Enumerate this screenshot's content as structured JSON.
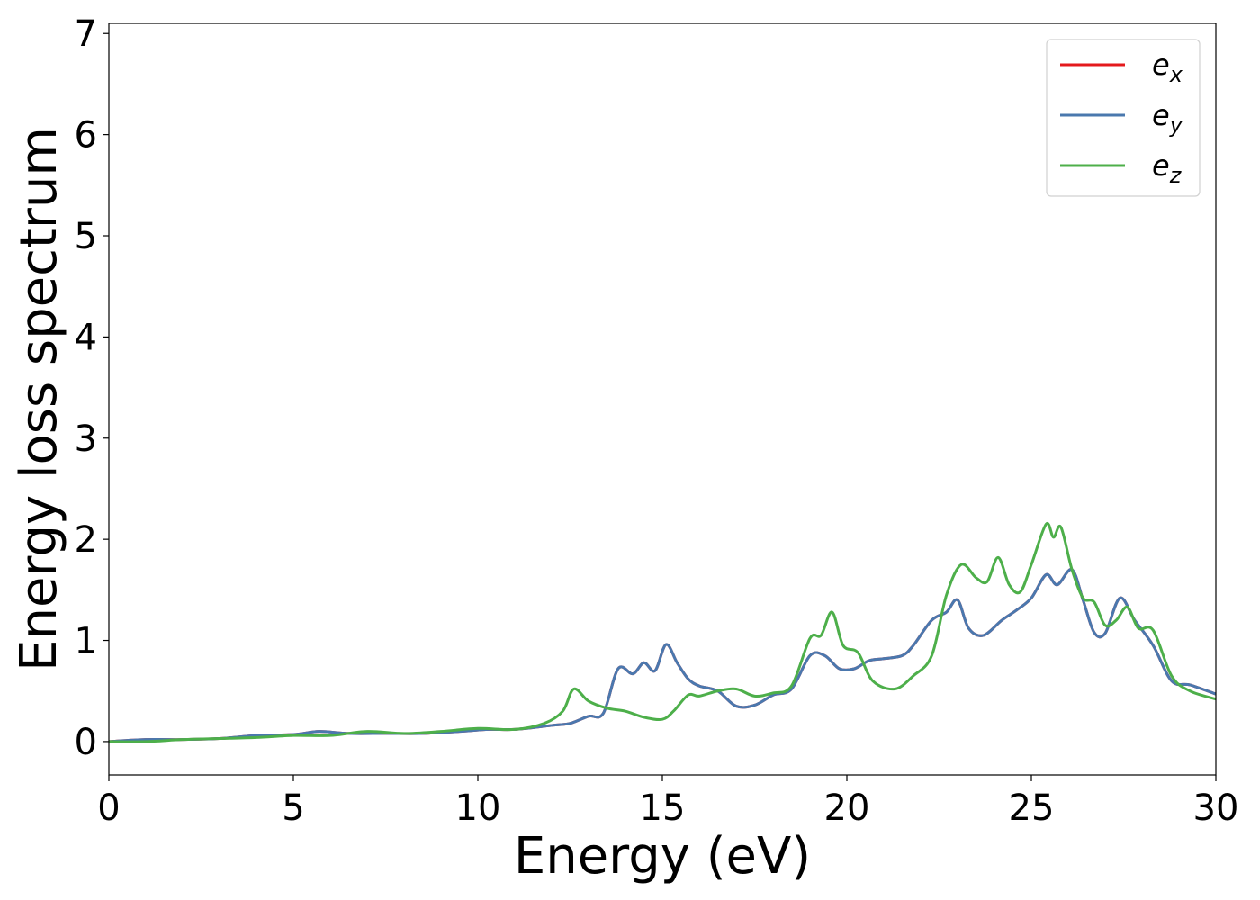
{
  "chart_data": {
    "type": "line",
    "title": "",
    "xlabel": "Energy (eV)",
    "ylabel": "Energy loss spectrum",
    "xlim": [
      0,
      30
    ],
    "ylim": [
      -0.33,
      7.1
    ],
    "xticks": [
      0,
      5,
      10,
      15,
      20,
      25,
      30
    ],
    "yticks": [
      0,
      1,
      2,
      3,
      4,
      5,
      6,
      7
    ],
    "grid": false,
    "legend_position": "top-right",
    "series": [
      {
        "name": "e",
        "subscript": "x",
        "color": "#e41a1c",
        "x": [
          0,
          1,
          2,
          3,
          4,
          5,
          5.7,
          6.5,
          7.5,
          8.5,
          9.5,
          10.3,
          11,
          12,
          12.5,
          13,
          13.4,
          13.8,
          14.2,
          14.5,
          14.8,
          15.1,
          15.4,
          15.7,
          16,
          16.5,
          17,
          17.5,
          18,
          18.5,
          19,
          19.4,
          19.8,
          20.2,
          20.6,
          21,
          21.5,
          21.8,
          22.3,
          22.7,
          23,
          23.3,
          23.7,
          24.2,
          24.6,
          25,
          25.4,
          25.7,
          26.1,
          26.4,
          26.7,
          27,
          27.4,
          27.8,
          28.3,
          28.8,
          29.3,
          30
        ],
        "values": [
          0,
          0.02,
          0.02,
          0.03,
          0.06,
          0.07,
          0.1,
          0.08,
          0.08,
          0.08,
          0.1,
          0.12,
          0.12,
          0.16,
          0.18,
          0.25,
          0.28,
          0.72,
          0.67,
          0.78,
          0.7,
          0.96,
          0.78,
          0.62,
          0.55,
          0.5,
          0.35,
          0.36,
          0.46,
          0.52,
          0.85,
          0.85,
          0.72,
          0.72,
          0.8,
          0.82,
          0.85,
          0.95,
          1.2,
          1.28,
          1.4,
          1.12,
          1.05,
          1.2,
          1.3,
          1.42,
          1.65,
          1.55,
          1.7,
          1.4,
          1.08,
          1.07,
          1.42,
          1.2,
          0.95,
          0.6,
          0.56,
          0.47
        ]
      },
      {
        "name": "e",
        "subscript": "y",
        "color": "#4a78ae",
        "x": [
          0,
          1,
          2,
          3,
          4,
          5,
          5.7,
          6.5,
          7.5,
          8.5,
          9.5,
          10.3,
          11,
          12,
          12.5,
          13,
          13.4,
          13.8,
          14.2,
          14.5,
          14.8,
          15.1,
          15.4,
          15.7,
          16,
          16.5,
          17,
          17.5,
          18,
          18.5,
          19,
          19.4,
          19.8,
          20.2,
          20.6,
          21,
          21.5,
          21.8,
          22.3,
          22.7,
          23,
          23.3,
          23.7,
          24.2,
          24.6,
          25,
          25.4,
          25.7,
          26.1,
          26.4,
          26.7,
          27,
          27.4,
          27.8,
          28.3,
          28.8,
          29.3,
          30
        ],
        "values": [
          0,
          0.02,
          0.02,
          0.03,
          0.06,
          0.07,
          0.1,
          0.08,
          0.08,
          0.08,
          0.1,
          0.12,
          0.12,
          0.16,
          0.18,
          0.25,
          0.28,
          0.72,
          0.67,
          0.78,
          0.7,
          0.96,
          0.78,
          0.62,
          0.55,
          0.5,
          0.35,
          0.36,
          0.46,
          0.52,
          0.85,
          0.85,
          0.72,
          0.72,
          0.8,
          0.82,
          0.85,
          0.95,
          1.2,
          1.28,
          1.4,
          1.12,
          1.05,
          1.2,
          1.3,
          1.42,
          1.65,
          1.55,
          1.7,
          1.4,
          1.08,
          1.07,
          1.42,
          1.2,
          0.95,
          0.6,
          0.56,
          0.47
        ]
      },
      {
        "name": "e",
        "subscript": "z",
        "color": "#4daf4a",
        "x": [
          0,
          1,
          2,
          3,
          4,
          5,
          6,
          7,
          8,
          9,
          10,
          11,
          11.8,
          12.3,
          12.6,
          13,
          13.5,
          14,
          14.5,
          15,
          15.3,
          15.7,
          16,
          16.5,
          17,
          17.5,
          18,
          18.5,
          19,
          19.3,
          19.6,
          19.9,
          20.3,
          20.7,
          21.3,
          21.8,
          22.3,
          22.7,
          23.1,
          23.5,
          23.8,
          24.1,
          24.4,
          24.7,
          25,
          25.4,
          25.6,
          25.8,
          26.1,
          26.4,
          26.7,
          27,
          27.3,
          27.6,
          27.9,
          28.3,
          28.8,
          29.3,
          30
        ],
        "values": [
          0,
          0,
          0.02,
          0.03,
          0.04,
          0.06,
          0.06,
          0.1,
          0.08,
          0.1,
          0.13,
          0.12,
          0.18,
          0.3,
          0.52,
          0.4,
          0.33,
          0.3,
          0.24,
          0.22,
          0.3,
          0.46,
          0.45,
          0.5,
          0.52,
          0.45,
          0.48,
          0.55,
          1.02,
          1.05,
          1.28,
          0.95,
          0.88,
          0.6,
          0.52,
          0.65,
          0.85,
          1.45,
          1.75,
          1.62,
          1.58,
          1.82,
          1.55,
          1.48,
          1.75,
          2.15,
          2.02,
          2.12,
          1.7,
          1.42,
          1.38,
          1.15,
          1.2,
          1.33,
          1.12,
          1.1,
          0.65,
          0.5,
          0.42
        ]
      }
    ]
  }
}
